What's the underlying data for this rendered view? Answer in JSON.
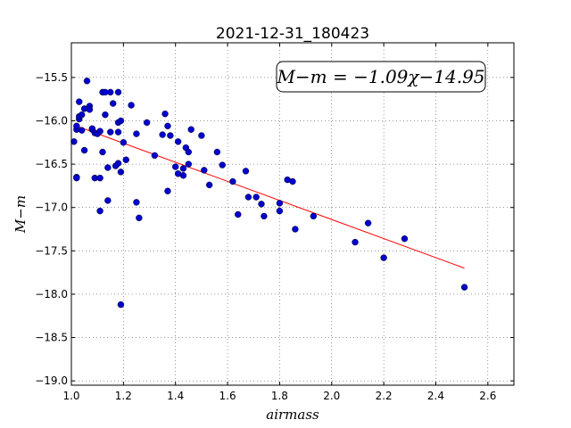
{
  "chart_data": {
    "type": "scatter",
    "title": "2021-12-31_180423",
    "xlabel": "airmass",
    "ylabel": "M−m",
    "xlim": [
      1.0,
      2.7
    ],
    "ylim": [
      -19.05,
      -15.1
    ],
    "xticks": [
      "1.0",
      "1.2",
      "1.4",
      "1.6",
      "1.8",
      "2.0",
      "2.2",
      "2.4",
      "2.6"
    ],
    "yticks": [
      "−15.5",
      "−16.0",
      "−16.5",
      "−17.0",
      "−17.5",
      "−18.0",
      "−18.5",
      "−19.0"
    ],
    "grid": true,
    "annotation": "M−m = −1.09χ−14.95",
    "colors": {
      "points": "#0000cc",
      "fit": "#ff0000"
    },
    "fit_line": {
      "x": [
        1.02,
        2.51
      ],
      "y": [
        -16.06,
        -17.7
      ]
    },
    "points": [
      {
        "x": 1.01,
        "y": -16.24
      },
      {
        "x": 1.02,
        "y": -16.65
      },
      {
        "x": 1.02,
        "y": -16.66
      },
      {
        "x": 1.02,
        "y": -16.1
      },
      {
        "x": 1.02,
        "y": -16.06
      },
      {
        "x": 1.03,
        "y": -15.98
      },
      {
        "x": 1.03,
        "y": -15.95
      },
      {
        "x": 1.03,
        "y": -15.78
      },
      {
        "x": 1.04,
        "y": -15.93
      },
      {
        "x": 1.04,
        "y": -16.11
      },
      {
        "x": 1.05,
        "y": -16.34
      },
      {
        "x": 1.05,
        "y": -15.86
      },
      {
        "x": 1.06,
        "y": -15.54
      },
      {
        "x": 1.07,
        "y": -15.83
      },
      {
        "x": 1.07,
        "y": -15.87
      },
      {
        "x": 1.08,
        "y": -16.1
      },
      {
        "x": 1.08,
        "y": -16.09
      },
      {
        "x": 1.09,
        "y": -16.66
      },
      {
        "x": 1.09,
        "y": -16.14
      },
      {
        "x": 1.1,
        "y": -16.15
      },
      {
        "x": 1.11,
        "y": -16.12
      },
      {
        "x": 1.11,
        "y": -16.66
      },
      {
        "x": 1.11,
        "y": -17.04
      },
      {
        "x": 1.12,
        "y": -16.36
      },
      {
        "x": 1.12,
        "y": -15.67
      },
      {
        "x": 1.13,
        "y": -15.67
      },
      {
        "x": 1.13,
        "y": -15.93
      },
      {
        "x": 1.14,
        "y": -16.54
      },
      {
        "x": 1.14,
        "y": -16.92
      },
      {
        "x": 1.15,
        "y": -15.67
      },
      {
        "x": 1.15,
        "y": -16.13
      },
      {
        "x": 1.16,
        "y": -15.8
      },
      {
        "x": 1.17,
        "y": -16.52
      },
      {
        "x": 1.18,
        "y": -15.67
      },
      {
        "x": 1.18,
        "y": -16.13
      },
      {
        "x": 1.18,
        "y": -16.49
      },
      {
        "x": 1.18,
        "y": -16.02
      },
      {
        "x": 1.19,
        "y": -16.0
      },
      {
        "x": 1.19,
        "y": -16.59
      },
      {
        "x": 1.19,
        "y": -18.12
      },
      {
        "x": 1.2,
        "y": -16.25
      },
      {
        "x": 1.21,
        "y": -16.45
      },
      {
        "x": 1.23,
        "y": -15.82
      },
      {
        "x": 1.25,
        "y": -16.94
      },
      {
        "x": 1.25,
        "y": -16.15
      },
      {
        "x": 1.26,
        "y": -17.12
      },
      {
        "x": 1.29,
        "y": -16.02
      },
      {
        "x": 1.32,
        "y": -16.4
      },
      {
        "x": 1.35,
        "y": -16.16
      },
      {
        "x": 1.36,
        "y": -15.92
      },
      {
        "x": 1.37,
        "y": -16.81
      },
      {
        "x": 1.37,
        "y": -16.06
      },
      {
        "x": 1.38,
        "y": -16.17
      },
      {
        "x": 1.4,
        "y": -16.53
      },
      {
        "x": 1.41,
        "y": -16.24
      },
      {
        "x": 1.41,
        "y": -16.61
      },
      {
        "x": 1.43,
        "y": -16.55
      },
      {
        "x": 1.43,
        "y": -16.63
      },
      {
        "x": 1.44,
        "y": -16.31
      },
      {
        "x": 1.45,
        "y": -16.36
      },
      {
        "x": 1.45,
        "y": -16.5
      },
      {
        "x": 1.46,
        "y": -16.1
      },
      {
        "x": 1.5,
        "y": -16.17
      },
      {
        "x": 1.51,
        "y": -16.57
      },
      {
        "x": 1.53,
        "y": -16.74
      },
      {
        "x": 1.56,
        "y": -16.36
      },
      {
        "x": 1.58,
        "y": -16.51
      },
      {
        "x": 1.62,
        "y": -16.7
      },
      {
        "x": 1.64,
        "y": -17.08
      },
      {
        "x": 1.67,
        "y": -16.58
      },
      {
        "x": 1.68,
        "y": -16.88
      },
      {
        "x": 1.71,
        "y": -16.88
      },
      {
        "x": 1.73,
        "y": -16.96
      },
      {
        "x": 1.74,
        "y": -17.1
      },
      {
        "x": 1.8,
        "y": -17.04
      },
      {
        "x": 1.8,
        "y": -16.95
      },
      {
        "x": 1.83,
        "y": -16.68
      },
      {
        "x": 1.85,
        "y": -16.7
      },
      {
        "x": 1.86,
        "y": -17.25
      },
      {
        "x": 1.93,
        "y": -17.1
      },
      {
        "x": 2.09,
        "y": -17.4
      },
      {
        "x": 2.14,
        "y": -17.18
      },
      {
        "x": 2.2,
        "y": -17.58
      },
      {
        "x": 2.28,
        "y": -17.36
      },
      {
        "x": 2.51,
        "y": -17.92
      }
    ]
  }
}
